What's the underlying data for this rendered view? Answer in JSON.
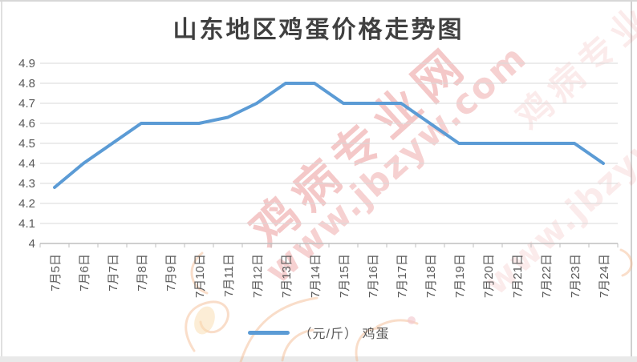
{
  "chart_data": {
    "type": "line",
    "title": "山东地区鸡蛋价格走势图",
    "categories": [
      "7月5日",
      "7月6日",
      "7月7日",
      "7月8日",
      "7月9日",
      "7月10日",
      "7月11日",
      "7月12日",
      "7月13日",
      "7月14日",
      "7月15日",
      "7月16日",
      "7月17日",
      "7月18日",
      "7月19日",
      "7月20日",
      "7月21日",
      "7月22日",
      "7月23日",
      "7月24日"
    ],
    "series": [
      {
        "name": "（元/斤） 鸡蛋",
        "values": [
          4.28,
          4.4,
          4.5,
          4.6,
          4.6,
          4.6,
          4.63,
          4.7,
          4.8,
          4.8,
          4.7,
          4.7,
          4.7,
          4.6,
          4.5,
          4.5,
          4.5,
          4.5,
          4.5,
          4.4
        ]
      }
    ],
    "xlabel": "",
    "ylabel": "",
    "ylim": [
      4,
      4.9
    ],
    "y_ticks": [
      "4",
      "4.1",
      "4.2",
      "4.3",
      "4.4",
      "4.5",
      "4.6",
      "4.7",
      "4.8",
      "4.9"
    ],
    "grid": true,
    "legend_position": "bottom",
    "line_color": "#5b9bd5"
  },
  "watermark": {
    "site_name": "鸡病专业网",
    "site_url": "www.jbzyw.com"
  },
  "colors": {
    "line": "#5b9bd5",
    "gridline": "#d9d9d9",
    "axis": "#bfbfbf",
    "tick_label": "#595959",
    "title": "#404040",
    "watermark": "#e06666"
  }
}
